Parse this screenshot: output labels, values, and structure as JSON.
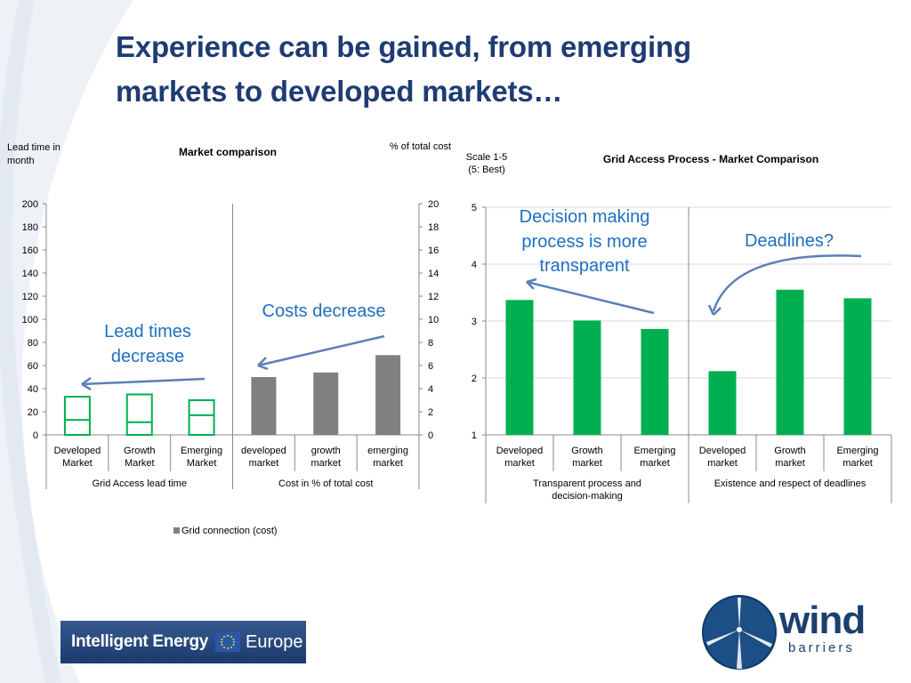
{
  "slide": {
    "title_line1": "Experience can be gained, from emerging",
    "title_line2": "markets to developed markets…"
  },
  "colors": {
    "title": "#1f3b73",
    "green": "#00b050",
    "gray": "#808080",
    "annotation": "#1f6fbf"
  },
  "chart_data": [
    {
      "type": "bar",
      "title": "Market comparison",
      "left_axis_label": "Lead time in month",
      "right_axis_label": "% of total cost",
      "ylim_left": [
        0,
        200
      ],
      "ylim_right": [
        0,
        20
      ],
      "yticks_left": [
        "200",
        "180",
        "160",
        "140",
        "120",
        "100",
        "80",
        "60",
        "40",
        "20",
        "0"
      ],
      "yticks_right": [
        "20",
        "18",
        "16",
        "14",
        "12",
        "10",
        "8",
        "6",
        "4",
        "2",
        "0"
      ],
      "groups": [
        {
          "name": "Grid Access lead time",
          "categories": [
            "Developed Market",
            "Growth Market",
            "Emerging Market"
          ],
          "range_boxes": [
            {
              "low": 0,
              "high": 33,
              "mid": 13
            },
            {
              "low": 0,
              "high": 35,
              "mid": 11
            },
            {
              "low": 0,
              "high": 30,
              "mid": 17
            }
          ]
        },
        {
          "name": "Cost in % of total cost",
          "categories": [
            "developed market",
            "growth market",
            "emerging market"
          ],
          "values": [
            5,
            5.4,
            6.9
          ]
        }
      ],
      "legend": "Grid connection (cost)",
      "annotations": {
        "lead_times": "Lead times decrease",
        "costs": "Costs decrease"
      }
    },
    {
      "type": "bar",
      "title": "Grid Access Process - Market Comparison",
      "axis_label": "Scale 1-5 (5: Best)",
      "ylim": [
        1,
        5
      ],
      "yticks": [
        "5",
        "4",
        "3",
        "2",
        "1"
      ],
      "groups": [
        {
          "name": "Transparent process and decision-making",
          "categories": [
            "Developed market",
            "Growth market",
            "Emerging market"
          ],
          "values": [
            3.37,
            3.01,
            2.86
          ]
        },
        {
          "name": "Existence and respect of deadlines",
          "categories": [
            "Developed market",
            "Growth market",
            "Emerging market"
          ],
          "values": [
            2.12,
            3.55,
            3.4
          ]
        }
      ],
      "annotations": {
        "decision": "Decision making process is more transparent",
        "deadlines": "Deadlines?"
      }
    }
  ],
  "logos": {
    "left": {
      "text": "Intelligent Energy",
      "suffix": "Europe"
    },
    "right": {
      "word1": "wind",
      "word2": "barriers"
    }
  }
}
